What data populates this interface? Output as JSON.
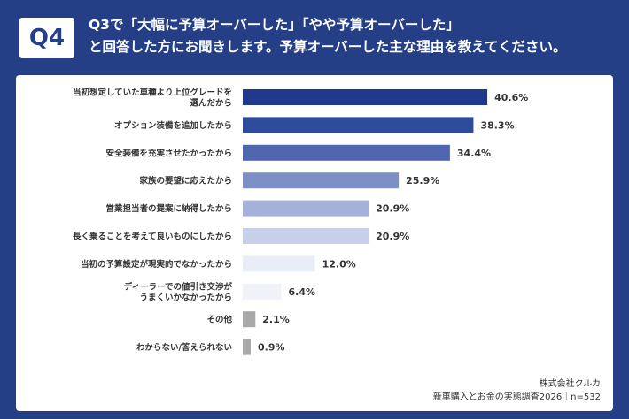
{
  "header": {
    "badge": "Q4",
    "title_line1": "Q3で「大幅に予算オーバーした」「やや予算オーバーした」",
    "title_line2": "と回答した方にお聞きします。予算オーバーした主な理由を教えてください。"
  },
  "colors": {
    "background": "#243f86",
    "card": "#ffffff",
    "bars": [
      "#1f3a8c",
      "#2f4b9c",
      "#5067b0",
      "#7e8fc7",
      "#a4b1da",
      "#c7cfea",
      "#e9edf6",
      "#eff2f9",
      "#a8a8a8",
      "#a8a8a8"
    ]
  },
  "chart_data": {
    "type": "bar",
    "orientation": "horizontal",
    "title": "",
    "xlabel": "",
    "ylabel": "",
    "grid": false,
    "legend": "none",
    "unit": "%",
    "categories": [
      [
        "当初想定していた車種より上位グレードを",
        "選んだから"
      ],
      [
        "オプション装備を追加したから"
      ],
      [
        "安全装備を充実させたかったから"
      ],
      [
        "家族の要望に応えたから"
      ],
      [
        "営業担当者の提案に納得したから"
      ],
      [
        "長く乗ることを考えて良いものにしたから"
      ],
      [
        "当初の予算設定が現実的でなかったから"
      ],
      [
        "ディーラーでの値引き交渉が",
        "うまくいかなかったから"
      ],
      [
        "その他"
      ],
      [
        "わからない/答えられない"
      ]
    ],
    "values": [
      40.6,
      38.3,
      34.4,
      25.9,
      20.9,
      20.9,
      12.0,
      6.4,
      2.1,
      0.9
    ],
    "value_labels": [
      "40.6%",
      "38.3%",
      "34.4%",
      "25.9%",
      "20.9%",
      "20.9%",
      "12.0%",
      "6.4%",
      "2.1%",
      "0.9%"
    ],
    "xlim": [
      0,
      50
    ]
  },
  "footer": {
    "line1": "株式会社クルカ",
    "line2": "新車購入とお金の実態調査2026｜n=532"
  }
}
